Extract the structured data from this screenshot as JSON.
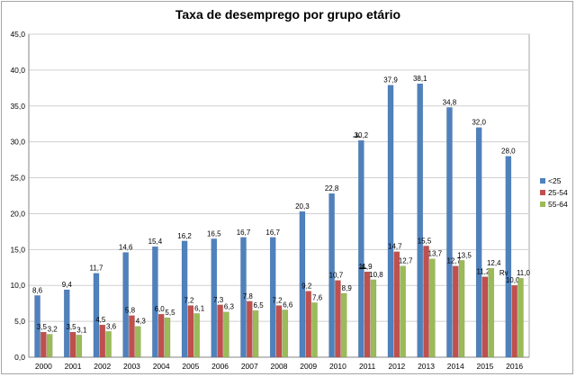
{
  "chart_data": {
    "type": "bar",
    "title": "Taxa de desemprego por grupo etário",
    "xlabel": "",
    "ylabel": "",
    "ylim": [
      0,
      45
    ],
    "yticks": [
      "0,0",
      "5,0",
      "10,0",
      "15,0",
      "20,0",
      "25,0",
      "30,0",
      "35,0",
      "40,0",
      "45,0"
    ],
    "ytick_values": [
      0,
      5,
      10,
      15,
      20,
      25,
      30,
      35,
      40,
      45
    ],
    "grid": true,
    "legend_position": "right",
    "categories": [
      "2000",
      "2001",
      "2002",
      "2003",
      "2004",
      "2005",
      "2006",
      "2007",
      "2008",
      "2009",
      "2010",
      "2011",
      "2012",
      "2013",
      "2014",
      "2015",
      "2016"
    ],
    "series": [
      {
        "name": "<25",
        "color": "#4f81bd",
        "values": [
          8.6,
          9.4,
          11.7,
          14.6,
          15.4,
          16.2,
          16.5,
          16.7,
          16.7,
          20.3,
          22.8,
          30.2,
          37.9,
          38.1,
          34.8,
          32.0,
          28.0
        ],
        "labels": [
          "8,6",
          "9,4",
          "11,7",
          "14,6",
          "15,4",
          "16,2",
          "16,5",
          "16,7",
          "16,7",
          "20,3",
          "22,8",
          "30,2",
          "37,9",
          "38,1",
          "34,8",
          "32,0",
          "28,0"
        ]
      },
      {
        "name": "25-54",
        "color": "#c0504d",
        "values": [
          3.5,
          3.5,
          4.5,
          5.8,
          6.0,
          7.2,
          7.3,
          7.8,
          7.2,
          9.2,
          10.7,
          11.9,
          14.7,
          15.5,
          12.7,
          11.2,
          10.0
        ],
        "labels": [
          "3,5",
          "3,5",
          "4,5",
          "5,8",
          "6,0",
          "7,2",
          "7,3",
          "7,8",
          "7,2",
          "9,2",
          "10,7",
          "11,9",
          "14,7",
          "15,5",
          "12,7",
          "11,2",
          "10,0"
        ]
      },
      {
        "name": "55-64",
        "color": "#9bbb59",
        "values": [
          3.2,
          3.1,
          3.6,
          4.3,
          5.5,
          6.1,
          6.3,
          6.5,
          6.6,
          7.6,
          8.9,
          10.8,
          12.7,
          13.7,
          13.5,
          12.4,
          11.0
        ],
        "labels": [
          "3,2",
          "3,1",
          "3,6",
          "4,3",
          "5,5",
          "6,1",
          "6,3",
          "6,5",
          "6,6",
          "7,6",
          "8,9",
          "10,8",
          "12,7",
          "13,7",
          "13,5",
          "12,4",
          "11,0"
        ]
      }
    ],
    "annotations": [
      "Rv"
    ]
  }
}
